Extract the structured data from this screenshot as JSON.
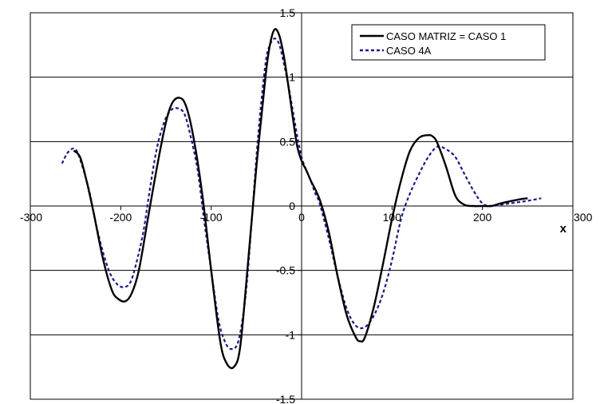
{
  "chart_data": {
    "type": "line",
    "title": "",
    "xlabel": "x",
    "ylabel": "",
    "xlim": [
      -300,
      300
    ],
    "ylim": [
      -1.5,
      1.5
    ],
    "x_ticks": [
      -300,
      -200,
      -100,
      0,
      100,
      200,
      300
    ],
    "x_tick_labels": [
      "-300",
      "-200",
      "-100",
      "0",
      "100",
      "200",
      "300"
    ],
    "y_ticks": [
      1.5,
      1,
      0.5,
      0,
      -0.5,
      -1,
      -1.5
    ],
    "y_tick_labels": [
      "1.5",
      "1",
      "0.5",
      "0",
      "-0.5",
      "-1",
      "-1.5"
    ],
    "grid": "horizontal",
    "legend_position": "top-right",
    "series": [
      {
        "name": "CASO MATRIZ = CASO 1",
        "color": "#000000",
        "style": "solid",
        "x": [
          -252,
          -245,
          -238,
          -230,
          -220,
          -210,
          -203,
          -195,
          -188,
          -180,
          -170,
          -160,
          -150,
          -143,
          -135,
          -128,
          -120,
          -110,
          -100,
          -90,
          -83,
          -75,
          -68,
          -60,
          -50,
          -40,
          -35,
          -30,
          -25,
          -20,
          -15,
          -10,
          -5,
          0,
          5,
          10,
          20,
          30,
          40,
          50,
          60,
          65,
          70,
          80,
          90,
          100,
          110,
          120,
          130,
          140,
          145,
          150,
          160,
          170,
          180,
          190,
          200,
          210,
          220,
          240,
          250
        ],
        "y": [
          0.43,
          0.38,
          0.2,
          -0.05,
          -0.4,
          -0.65,
          -0.72,
          -0.74,
          -0.68,
          -0.5,
          -0.1,
          0.3,
          0.65,
          0.8,
          0.84,
          0.78,
          0.55,
          0.1,
          -0.5,
          -1.05,
          -1.22,
          -1.25,
          -1.1,
          -0.5,
          0.3,
          1.0,
          1.25,
          1.37,
          1.33,
          1.18,
          0.95,
          0.7,
          0.47,
          0.35,
          0.28,
          0.2,
          0.05,
          -0.2,
          -0.55,
          -0.85,
          -1.02,
          -1.05,
          -1.02,
          -0.78,
          -0.45,
          -0.1,
          0.2,
          0.43,
          0.53,
          0.55,
          0.54,
          0.49,
          0.3,
          0.08,
          0.01,
          0.0,
          0.0,
          0.0,
          0.02,
          0.05,
          0.06
        ]
      },
      {
        "name": "CASO 4A",
        "color": "#1a1a8c",
        "style": "dashed",
        "x": [
          -265,
          -258,
          -250,
          -243,
          -235,
          -228,
          -220,
          -212,
          -205,
          -198,
          -190,
          -183,
          -175,
          -168,
          -160,
          -152,
          -145,
          -138,
          -130,
          -123,
          -115,
          -108,
          -100,
          -92,
          -85,
          -78,
          -70,
          -62,
          -55,
          -48,
          -40,
          -35,
          -30,
          -25,
          -20,
          -15,
          -10,
          -5,
          0,
          5,
          10,
          15,
          20,
          30,
          40,
          50,
          60,
          70,
          80,
          90,
          100,
          110,
          120,
          130,
          140,
          150,
          160,
          170,
          180,
          190,
          200,
          210,
          220,
          230,
          240,
          250,
          265
        ],
        "y": [
          0.33,
          0.42,
          0.44,
          0.32,
          0.12,
          -0.12,
          -0.35,
          -0.52,
          -0.6,
          -0.63,
          -0.6,
          -0.45,
          -0.2,
          0.12,
          0.45,
          0.65,
          0.74,
          0.76,
          0.72,
          0.55,
          0.28,
          -0.1,
          -0.5,
          -0.88,
          -1.05,
          -1.11,
          -1.05,
          -0.7,
          -0.1,
          0.55,
          1.1,
          1.25,
          1.3,
          1.26,
          1.12,
          0.95,
          0.75,
          0.55,
          0.38,
          0.28,
          0.2,
          0.1,
          0.02,
          -0.25,
          -0.55,
          -0.8,
          -0.93,
          -0.94,
          -0.85,
          -0.68,
          -0.42,
          -0.1,
          0.1,
          0.25,
          0.38,
          0.46,
          0.44,
          0.38,
          0.25,
          0.12,
          0.02,
          0.0,
          0.01,
          0.02,
          0.03,
          0.04,
          0.06
        ]
      }
    ]
  }
}
